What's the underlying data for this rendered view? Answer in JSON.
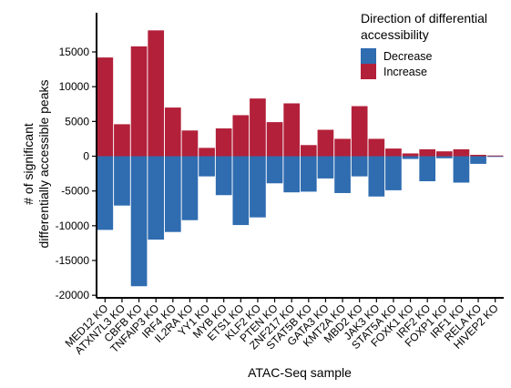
{
  "chart_data": {
    "type": "bar",
    "stacked": "diverging",
    "xlabel": "ATAC-Seq sample",
    "ylabel_lines": [
      "# of significant",
      "differentially accessible peaks"
    ],
    "ylim": [
      -20000,
      20000
    ],
    "yticks": [
      15000,
      10000,
      5000,
      0,
      -5000,
      -10000,
      -15000,
      -20000
    ],
    "grid": false,
    "legend": {
      "title_lines": [
        "Direction of differential",
        "accessibility"
      ],
      "placement": "top-right",
      "items": [
        {
          "label": "Decrease",
          "color": "#2f6cb0"
        },
        {
          "label": "Increase",
          "color": "#b3203a"
        }
      ]
    },
    "categories": [
      "MED12 KO",
      "ATXN7L3 KO",
      "CBFB KO",
      "TNFAIP3 KO",
      "IRF4 KO",
      "IL2RA KO",
      "YY1 KO",
      "MYB KO",
      "ETS1 KO",
      "KLF2 KO",
      "PTEN KO",
      "ZNF217 KO",
      "STAT5B KO",
      "GATA3 KO",
      "KMT2A KO",
      "MBD2 KO",
      "JAK3 KO",
      "STAT5A KO",
      "FOXK1 KO",
      "IRF2 KO",
      "FOXP1 KO",
      "IRF1 KO",
      "RELA KO",
      "HIVEP2 KO"
    ],
    "series": [
      {
        "name": "Decrease",
        "color": "#2f6cb0",
        "values": [
          -10600,
          -7100,
          -18700,
          -12000,
          -10900,
          -9200,
          -2900,
          -5600,
          -9900,
          -8800,
          -3900,
          -5200,
          -5100,
          -3200,
          -5300,
          -2900,
          -5800,
          -4900,
          -400,
          -3600,
          -300,
          -3800,
          -1100,
          -100
        ]
      },
      {
        "name": "Increase",
        "color": "#b3203a",
        "values": [
          14200,
          4600,
          15800,
          18100,
          7000,
          3700,
          1200,
          4000,
          5900,
          8300,
          4900,
          7600,
          1600,
          3800,
          2500,
          7200,
          2500,
          1100,
          400,
          1000,
          700,
          1000,
          200,
          100
        ]
      }
    ]
  }
}
